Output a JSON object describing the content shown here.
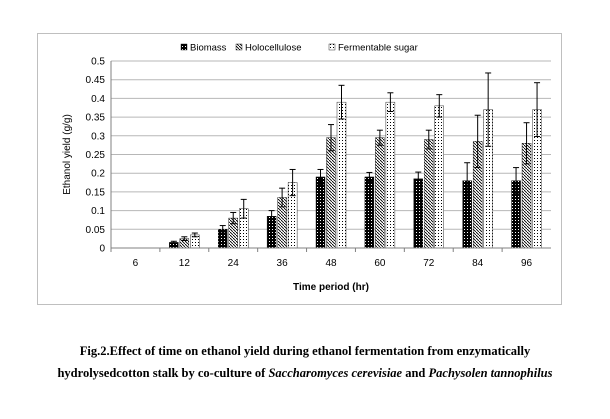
{
  "chart_data": {
    "type": "bar",
    "title": "",
    "xlabel": "Time period (hr)",
    "ylabel": "Ethanol yield (g/g)",
    "ylim": [
      0,
      0.5
    ],
    "yticks": [
      "0",
      "0.05",
      "0.1",
      "0.15",
      "0.2",
      "0.25",
      "0.3",
      "0.35",
      "0.4",
      "0.45",
      "0.5"
    ],
    "grid": true,
    "legend_position": "top",
    "categories": [
      "6",
      "12",
      "24",
      "36",
      "48",
      "60",
      "72",
      "84",
      "96"
    ],
    "series": [
      {
        "name": "Biomass",
        "pattern": "dots-dark",
        "values": [
          0,
          0.015,
          0.05,
          0.085,
          0.19,
          0.19,
          0.185,
          0.18,
          0.18
        ],
        "errors": [
          0,
          0.003,
          0.01,
          0.015,
          0.02,
          0.012,
          0.018,
          0.048,
          0.035
        ]
      },
      {
        "name": "Holocellulose",
        "pattern": "diagonal",
        "values": [
          0,
          0.025,
          0.08,
          0.135,
          0.295,
          0.295,
          0.29,
          0.285,
          0.28
        ],
        "errors": [
          0,
          0.005,
          0.015,
          0.025,
          0.035,
          0.02,
          0.025,
          0.07,
          0.055
        ]
      },
      {
        "name": "Fermentable sugar",
        "pattern": "dots-light",
        "values": [
          0,
          0.035,
          0.105,
          0.175,
          0.39,
          0.39,
          0.38,
          0.37,
          0.37
        ],
        "errors": [
          0,
          0.005,
          0.025,
          0.035,
          0.045,
          0.025,
          0.03,
          0.098,
          0.072
        ]
      }
    ]
  },
  "caption": {
    "line1": "Fig.2.Effect of time on ethanol yield during ethanol fermentation from enzymatically",
    "line2_prefix": "hydrolysedcotton stalk by co-culture of ",
    "organism1": "Saccharomyces cerevisiae",
    "conjunction": " and ",
    "organism2": "Pachysolen tannophilus"
  },
  "colors": {
    "frame": "#bfbfbf",
    "grid": "#b7b7b7",
    "axis": "#808080",
    "bar_ink": "#000000"
  }
}
